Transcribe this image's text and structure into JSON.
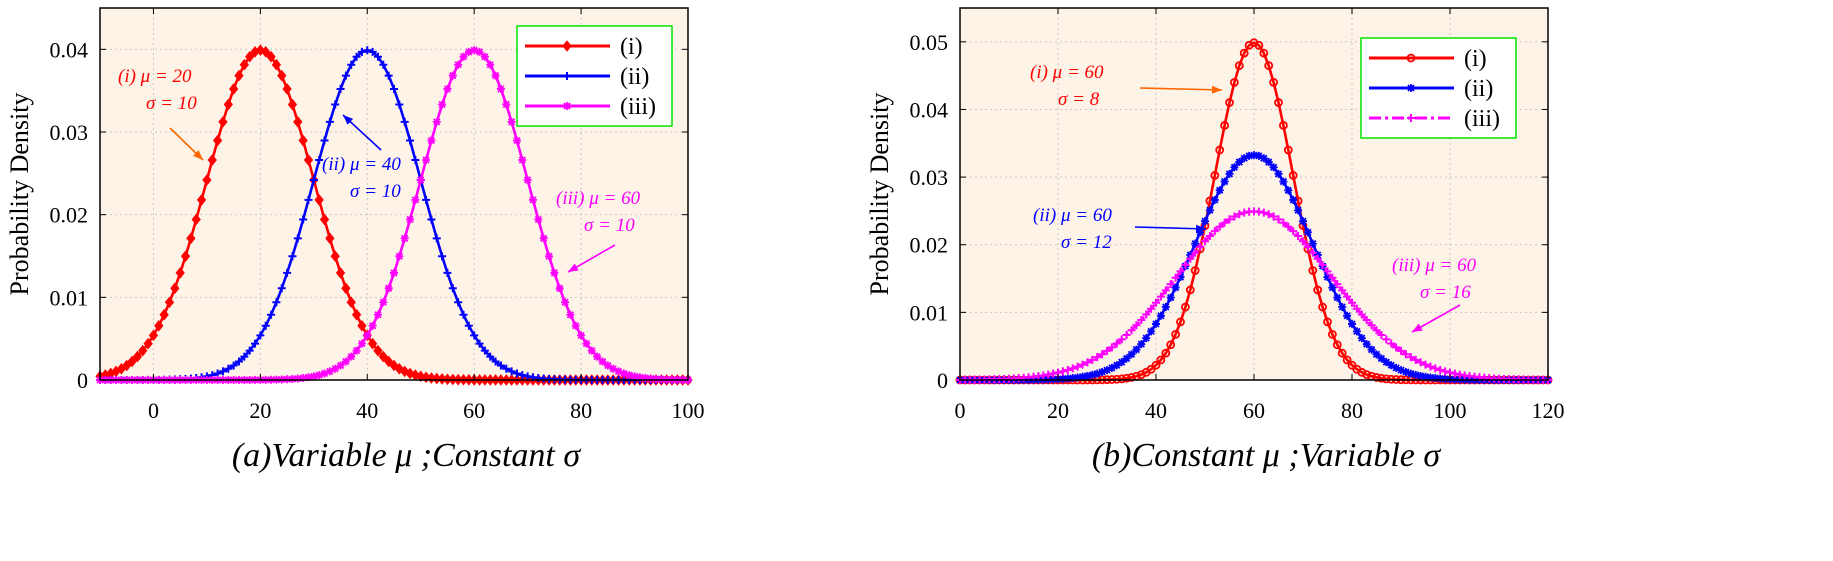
{
  "chart_data": [
    {
      "type": "line",
      "id": "a",
      "caption": "(a)Variable μ ;Constant σ",
      "ylabel": "Probability Density",
      "xlim": [
        -10,
        100
      ],
      "ylim": [
        0,
        0.045
      ],
      "xticks": [
        0,
        20,
        40,
        60,
        80,
        100
      ],
      "xtick_labels": [
        "0",
        "20",
        "40",
        "60",
        "80",
        "100"
      ],
      "yticks": [
        0,
        0.01,
        0.02,
        0.03,
        0.04
      ],
      "ytick_labels": [
        "0",
        "0.01",
        "0.02",
        "0.03",
        "0.04"
      ],
      "grid": true,
      "background": "#fdf3e6",
      "legend_position": "top-right",
      "series": [
        {
          "name": "(i)",
          "mu": 20,
          "sigma": 10,
          "color": "#ff0000",
          "marker": "diamond",
          "linestyle": "solid",
          "peak": 0.04
        },
        {
          "name": "(ii)",
          "mu": 40,
          "sigma": 10,
          "color": "#0000ff",
          "marker": "plus",
          "linestyle": "solid",
          "peak": 0.04
        },
        {
          "name": "(iii)",
          "mu": 60,
          "sigma": 10,
          "color": "#ff00ff",
          "marker": "star",
          "linestyle": "solid",
          "peak": 0.04
        }
      ],
      "annotations": [
        {
          "tag": "(i)",
          "line1": "μ = 20",
          "line2": "σ = 10",
          "color": "#ff0000",
          "arrow_color": "#ff6600"
        },
        {
          "tag": "(ii)",
          "line1": "μ = 40",
          "line2": "σ = 10",
          "color": "#0000ff",
          "arrow_color": "#0000ff"
        },
        {
          "tag": "(iii)",
          "line1": "μ = 60",
          "line2": "σ = 10",
          "color": "#ff00ff",
          "arrow_color": "#ff00ff"
        }
      ]
    },
    {
      "type": "line",
      "id": "b",
      "caption": "(b)Constant μ ;Variable σ",
      "ylabel": "Probability Density",
      "xlim": [
        0,
        120
      ],
      "ylim": [
        0,
        0.055
      ],
      "xticks": [
        0,
        20,
        40,
        60,
        80,
        100,
        120
      ],
      "xtick_labels": [
        "0",
        "20",
        "40",
        "60",
        "80",
        "100",
        "120"
      ],
      "yticks": [
        0,
        0.01,
        0.02,
        0.03,
        0.04,
        0.05
      ],
      "ytick_labels": [
        "0",
        "0.01",
        "0.02",
        "0.03",
        "0.04",
        "0.05"
      ],
      "grid": true,
      "background": "#fdf3e6",
      "legend_position": "top-right",
      "series": [
        {
          "name": "(i)",
          "mu": 60,
          "sigma": 8,
          "color": "#ff0000",
          "marker": "circle",
          "linestyle": "solid",
          "peak": 0.05
        },
        {
          "name": "(ii)",
          "mu": 60,
          "sigma": 12,
          "color": "#0000ff",
          "marker": "star",
          "linestyle": "solid",
          "peak": 0.0333
        },
        {
          "name": "(iii)",
          "mu": 60,
          "sigma": 16,
          "color": "#ff00ff",
          "marker": "plus",
          "linestyle": "dashdot",
          "peak": 0.025
        }
      ],
      "annotations": [
        {
          "tag": "(i)",
          "line1": "μ = 60",
          "line2": "σ = 8",
          "color": "#ff0000",
          "arrow_color": "#ff6600"
        },
        {
          "tag": "(ii)",
          "line1": "μ = 60",
          "line2": "σ = 12",
          "color": "#0000ff",
          "arrow_color": "#0000ff"
        },
        {
          "tag": "(iii)",
          "line1": "μ = 60",
          "line2": "σ = 16",
          "color": "#ff00ff",
          "arrow_color": "#ff00ff"
        }
      ]
    }
  ]
}
